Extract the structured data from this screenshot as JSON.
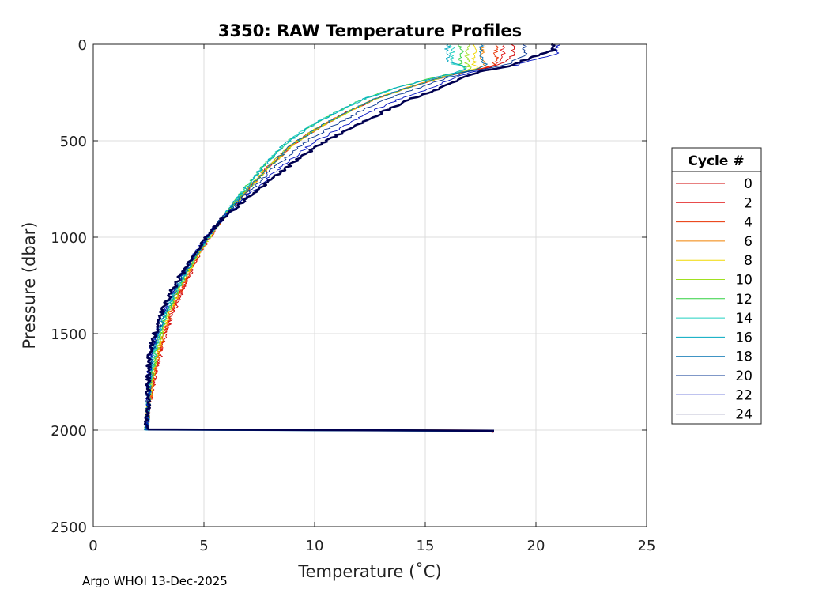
{
  "chart_data": {
    "type": "line",
    "title": "3350: RAW Temperature Profiles",
    "xlabel": "Temperature (˚C)",
    "ylabel": "Pressure (dbar)",
    "xlim": [
      0,
      25
    ],
    "ylim": [
      0,
      2500
    ],
    "y_reversed": true,
    "grid": true,
    "x_ticks": [
      0,
      5,
      10,
      15,
      20,
      25
    ],
    "y_ticks": [
      0,
      500,
      1000,
      1500,
      2000,
      2500
    ],
    "legend": {
      "title": "Cycle #",
      "position": "right",
      "entries": [
        "0",
        "2",
        "4",
        "6",
        "8",
        "10",
        "12",
        "14",
        "16",
        "18",
        "20",
        "22",
        "24"
      ]
    },
    "series": [
      {
        "name": "0",
        "color": "#d00000",
        "surface_temp": 19.0,
        "mixed_depth": 55
      },
      {
        "name": "2",
        "color": "#e01010",
        "surface_temp": 18.5,
        "mixed_depth": 65
      },
      {
        "name": "4",
        "color": "#e83000",
        "surface_temp": 18.2,
        "mixed_depth": 75
      },
      {
        "name": "6",
        "color": "#f08000",
        "surface_temp": 17.6,
        "mixed_depth": 95
      },
      {
        "name": "8",
        "color": "#f0d800",
        "surface_temp": 17.2,
        "mixed_depth": 110
      },
      {
        "name": "10",
        "color": "#a0e020",
        "surface_temp": 16.9,
        "mixed_depth": 115
      },
      {
        "name": "12",
        "color": "#30d040",
        "surface_temp": 16.6,
        "mixed_depth": 110
      },
      {
        "name": "14",
        "color": "#20d0c0",
        "surface_temp": 16.2,
        "mixed_depth": 100
      },
      {
        "name": "16",
        "color": "#00a8c0",
        "surface_temp": 16.0,
        "mixed_depth": 90
      },
      {
        "name": "18",
        "color": "#0070b0",
        "surface_temp": 17.5,
        "mixed_depth": 80
      },
      {
        "name": "20",
        "color": "#003090",
        "surface_temp": 19.5,
        "mixed_depth": 60
      },
      {
        "name": "22",
        "color": "#0010c0",
        "surface_temp": 21.0,
        "mixed_depth": 45
      },
      {
        "name": "24",
        "color": "#000050",
        "surface_temp": 20.8,
        "mixed_depth": 30
      }
    ],
    "base_profile": [
      [
        2.4,
        2000
      ],
      [
        2.5,
        1850
      ],
      [
        2.65,
        1700
      ],
      [
        2.9,
        1550
      ],
      [
        3.3,
        1400
      ],
      [
        3.9,
        1250
      ],
      [
        4.6,
        1100
      ],
      [
        5.5,
        950
      ],
      [
        6.6,
        800
      ],
      [
        7.8,
        650
      ],
      [
        9.0,
        520
      ],
      [
        10.2,
        430
      ],
      [
        11.5,
        350
      ],
      [
        12.8,
        280
      ],
      [
        14.2,
        225
      ],
      [
        15.5,
        180
      ],
      [
        16.8,
        140
      ],
      [
        18.0,
        105
      ]
    ]
  },
  "footer": "Argo WHOI 13-Dec-2025"
}
